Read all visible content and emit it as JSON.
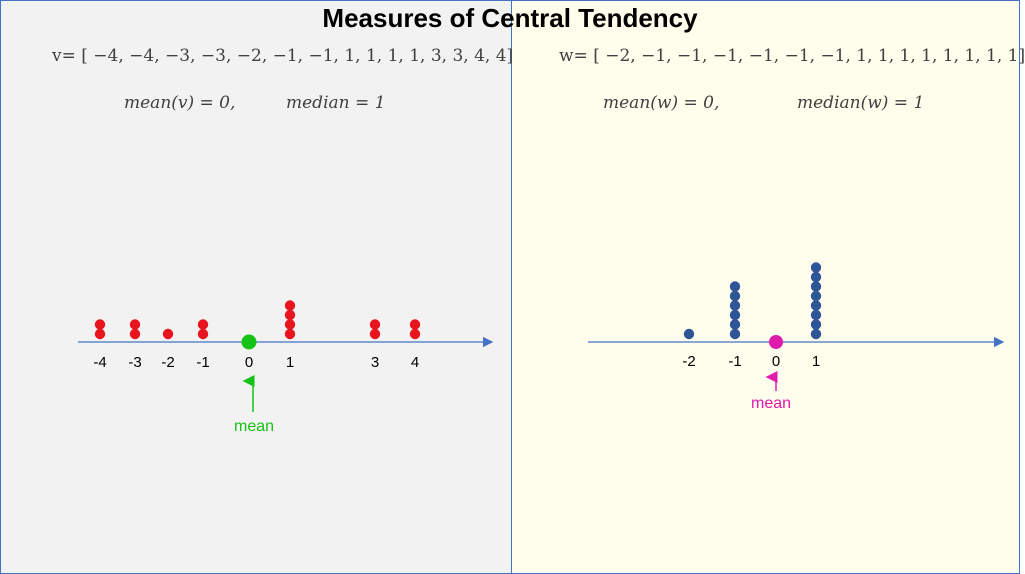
{
  "title": "Measures of Central Tendency",
  "left": {
    "vector_text": "v= [ −4, −4, −3, −3, −2, −1, −1, 1, 1, 1, 1, 3, 3, 4, 4]",
    "mean_text": "mean(v) = 0,",
    "median_text": "median = 1",
    "mean_label": "mean",
    "ticks": [
      "-4",
      "-3",
      "-2",
      "-1",
      "0",
      "1",
      "3",
      "4"
    ],
    "values": [
      -4,
      -4,
      -3,
      -3,
      -2,
      -1,
      -1,
      1,
      1,
      1,
      1,
      3,
      3,
      4,
      4
    ],
    "mean": 0,
    "dot_color": "#e8141e",
    "mean_color": "#17c217"
  },
  "right": {
    "vector_text": "w= [ −2, −1, −1, −1, −1, −1, −1, 1, 1, 1, 1, 1, 1, 1, 1]",
    "mean_text": "mean(w) = 0,",
    "median_text": "median(w) = 1",
    "mean_label": "mean",
    "ticks": [
      "-2",
      "-1",
      "0",
      "1"
    ],
    "values": [
      -2,
      -1,
      -1,
      -1,
      -1,
      -1,
      -1,
      1,
      1,
      1,
      1,
      1,
      1,
      1,
      1
    ],
    "mean": 0,
    "dot_color": "#2f5597",
    "mean_color": "#e01bae"
  },
  "axis_color": "#4472c4"
}
